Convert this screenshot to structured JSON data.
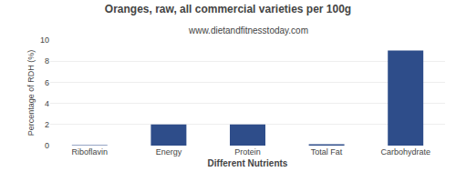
{
  "chart_data": {
    "type": "bar",
    "title": "Oranges, raw, all commercial varieties per 100g",
    "subtitle": "www.dietandfitnesstoday.com",
    "categories": [
      "Riboflavin",
      "Energy",
      "Protein",
      "Total Fat",
      "Carbohydrate"
    ],
    "values": [
      0.04,
      2.0,
      2.0,
      0.12,
      9.0
    ],
    "color": "#2e4d8a",
    "xlabel": "Different Nutrients",
    "ylabel": "Percentage of RDH (%)",
    "ylim": [
      0,
      10
    ],
    "yticks": [
      0,
      2,
      4,
      6,
      8,
      10
    ],
    "grid": true
  }
}
